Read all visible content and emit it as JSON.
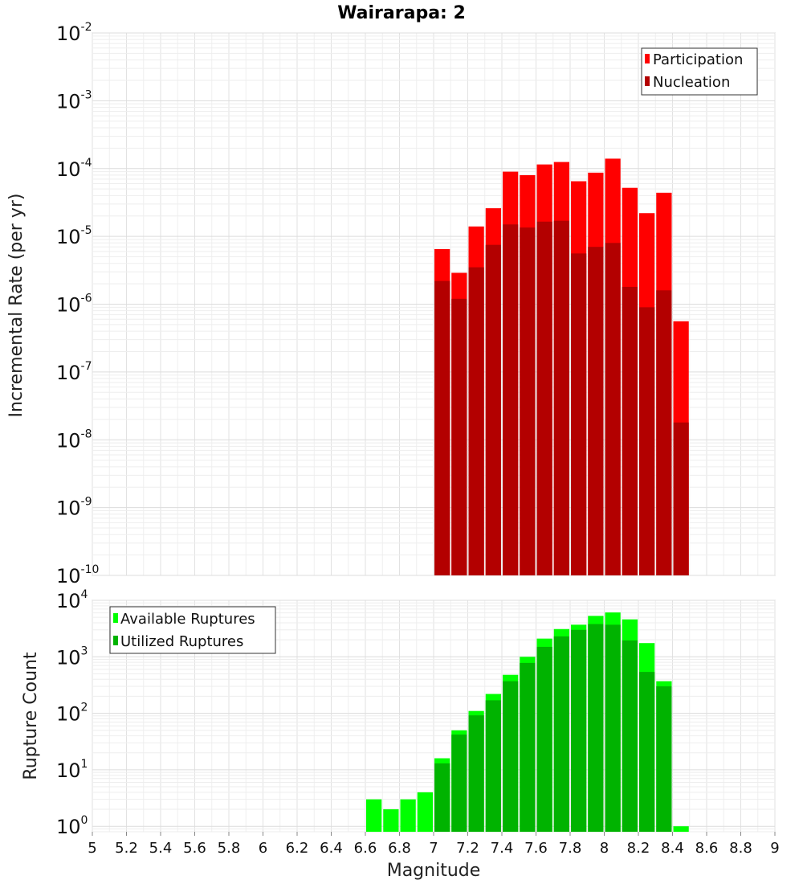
{
  "title": "Wairarapa: 2",
  "colors": {
    "participation": "#ff0000",
    "nucleation": "#b30000",
    "available": "#00ff00",
    "utilized": "#00b300"
  },
  "chart_data": [
    {
      "type": "bar",
      "ylabel": "Incremental Rate (per yr)",
      "xlabel": "",
      "yscale": "log",
      "ylim": [
        1e-10,
        0.01
      ],
      "xlim": [
        5,
        9
      ],
      "bin_width": 0.1,
      "legend": {
        "placement": "top-right",
        "entries": [
          "Participation",
          "Nucleation"
        ]
      },
      "y_ticks": [
        {
          "base": "10",
          "exp": "-2"
        },
        {
          "base": "10",
          "exp": "-3"
        },
        {
          "base": "10",
          "exp": "-4"
        },
        {
          "base": "10",
          "exp": "-5"
        },
        {
          "base": "10",
          "exp": "-6"
        },
        {
          "base": "10",
          "exp": "-7"
        },
        {
          "base": "10",
          "exp": "-8"
        },
        {
          "base": "10",
          "exp": "-9"
        },
        {
          "base": "10",
          "exp": "-10"
        }
      ],
      "x": [
        7.05,
        7.15,
        7.25,
        7.35,
        7.45,
        7.55,
        7.65,
        7.75,
        7.85,
        7.95,
        8.05,
        8.15,
        8.25,
        8.35,
        8.45
      ],
      "series": [
        {
          "name": "Participation",
          "values": [
            6.5e-06,
            2.9e-06,
            1.4e-05,
            2.6e-05,
            9e-05,
            8e-05,
            0.000115,
            0.000125,
            6.5e-05,
            8.7e-05,
            0.00014,
            5.2e-05,
            2.2e-05,
            4.4e-05,
            5.6e-07
          ]
        },
        {
          "name": "Nucleation",
          "values": [
            2.2e-06,
            1.2e-06,
            3.5e-06,
            7.5e-06,
            1.5e-05,
            1.35e-05,
            1.65e-05,
            1.7e-05,
            5.6e-06,
            7e-06,
            8e-06,
            1.8e-06,
            9e-07,
            1.6e-06,
            1.8e-08
          ]
        }
      ]
    },
    {
      "type": "bar",
      "ylabel": "Rupture Count",
      "xlabel": "Magnitude",
      "yscale": "log",
      "ylim": [
        0.8,
        10000
      ],
      "xlim": [
        5,
        9
      ],
      "bin_width": 0.1,
      "legend": {
        "placement": "top-left",
        "entries": [
          "Available Ruptures",
          "Utilized Ruptures"
        ]
      },
      "y_ticks": [
        {
          "base": "10",
          "exp": "4"
        },
        {
          "base": "10",
          "exp": "3"
        },
        {
          "base": "10",
          "exp": "2"
        },
        {
          "base": "10",
          "exp": "1"
        },
        {
          "base": "10",
          "exp": "0"
        }
      ],
      "x_ticks": [
        "5",
        "5.2",
        "5.4",
        "5.6",
        "5.8",
        "6",
        "6.2",
        "6.4",
        "6.6",
        "6.8",
        "7",
        "7.2",
        "7.4",
        "7.6",
        "7.8",
        "8",
        "8.2",
        "8.4",
        "8.6",
        "8.8",
        "9"
      ],
      "x": [
        6.65,
        6.75,
        6.85,
        6.95,
        7.05,
        7.15,
        7.25,
        7.35,
        7.45,
        7.55,
        7.65,
        7.75,
        7.85,
        7.95,
        8.05,
        8.15,
        8.25,
        8.35,
        8.45
      ],
      "series": [
        {
          "name": "Available Ruptures",
          "values": [
            3,
            2,
            3,
            4,
            16,
            50,
            110,
            220,
            480,
            1000,
            2100,
            3100,
            3700,
            5300,
            6100,
            4600,
            1750,
            370,
            1
          ]
        },
        {
          "name": "Utilized Ruptures",
          "values": [
            0,
            0,
            0,
            0,
            13,
            42,
            92,
            170,
            370,
            780,
            1500,
            2300,
            3000,
            3800,
            3700,
            1950,
            540,
            300,
            0
          ]
        }
      ]
    }
  ]
}
